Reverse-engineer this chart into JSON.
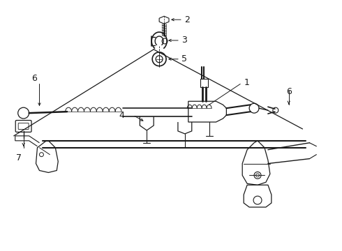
{
  "bg": "#ffffff",
  "lc": "#1a1a1a",
  "callout_nums": [
    "1",
    "2",
    "3",
    "4",
    "5",
    "6",
    "6",
    "7"
  ],
  "fs_label": 9,
  "fs_callout": 9
}
